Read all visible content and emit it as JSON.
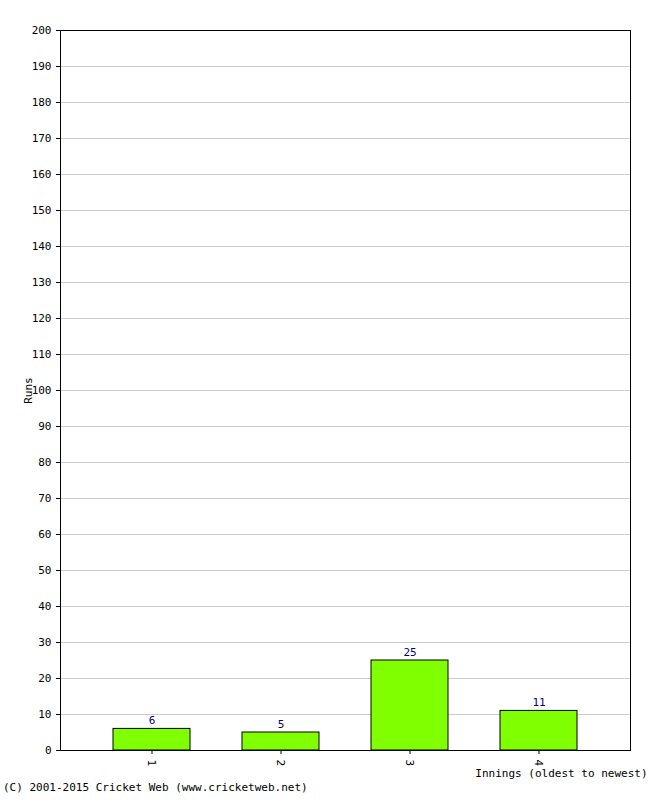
{
  "chart_data": {
    "type": "bar",
    "categories": [
      "1",
      "2",
      "3",
      "4"
    ],
    "values": [
      6,
      5,
      25,
      11
    ],
    "color": "#80ff00",
    "ylim": [
      0,
      200
    ],
    "yticks": [
      0,
      10,
      20,
      30,
      40,
      50,
      60,
      70,
      80,
      90,
      100,
      110,
      120,
      130,
      140,
      150,
      160,
      170,
      180,
      190,
      200
    ],
    "y_label": "Runs",
    "x_label": "Innings (oldest to newest)",
    "caption": "(C) 2001-2015 Cricket Web (www.cricketweb.net)",
    "grid": true,
    "data_labels": true
  }
}
